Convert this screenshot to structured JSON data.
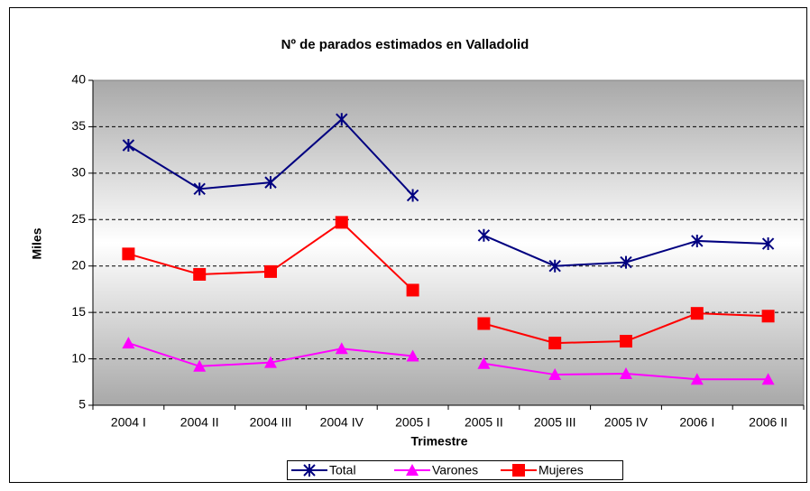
{
  "chart_data": {
    "type": "line",
    "title": "Nº de parados estimados en Valladolid",
    "x_label": "Trimestre",
    "y_label": "Miles",
    "categories": [
      "2004 I",
      "2004 II",
      "2004 III",
      "2004 IV",
      "2005 I",
      "2005 II",
      "2005 III",
      "2005 IV",
      "2006 I",
      "2006 II"
    ],
    "series": [
      {
        "name": "Total",
        "color": "#000080",
        "marker": "star",
        "values": [
          33,
          28.3,
          29,
          35.8,
          27.6,
          23.3,
          20,
          20.4,
          22.7,
          22.4
        ]
      },
      {
        "name": "Varones",
        "color": "#ff00ff",
        "marker": "triangle",
        "values": [
          11.7,
          9.2,
          9.6,
          11.1,
          10.3,
          9.5,
          8.3,
          8.4,
          7.8,
          7.8
        ]
      },
      {
        "name": "Mujeres",
        "color": "#ff0000",
        "marker": "square",
        "values": [
          21.3,
          19.1,
          19.4,
          24.7,
          17.4,
          13.8,
          11.7,
          11.9,
          14.9,
          14.6
        ]
      }
    ],
    "break_after_index": 4,
    "ylim": [
      5,
      40
    ],
    "yticks": [
      5,
      10,
      15,
      20,
      25,
      30,
      35,
      40
    ],
    "grid": true,
    "legend": "bottom"
  }
}
